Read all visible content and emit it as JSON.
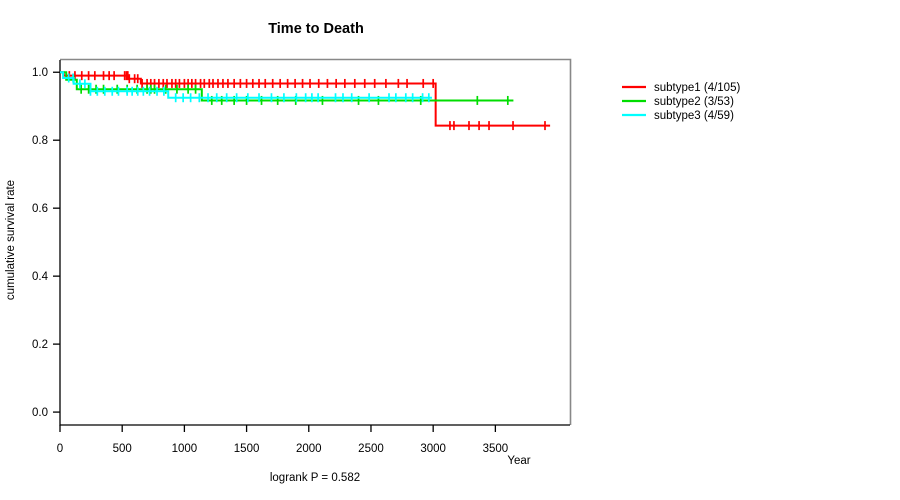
{
  "chart_data": {
    "type": "line",
    "subtype": "kaplan_meier_step_survival",
    "title": "Time to Death",
    "xlabel": "Year",
    "ylabel": "cumulative survival rate",
    "annotation": "logrank P = 0.582",
    "grid": false,
    "legend_position": "right-outside",
    "xlim": [
      0,
      4100
    ],
    "ylim": [
      -0.038,
      1.036
    ],
    "x_ticks": [
      {
        "v": 0,
        "label": "0"
      },
      {
        "v": 500,
        "label": "500"
      },
      {
        "v": 1000,
        "label": "1000"
      },
      {
        "v": 1500,
        "label": "1500"
      },
      {
        "v": 2000,
        "label": "2000"
      },
      {
        "v": 2500,
        "label": "2500"
      },
      {
        "v": 3000,
        "label": "3000"
      },
      {
        "v": 3500,
        "label": "3500"
      }
    ],
    "y_ticks": [
      {
        "v": 0.0,
        "label": "0.0"
      },
      {
        "v": 0.2,
        "label": "0.2"
      },
      {
        "v": 0.4,
        "label": "0.4"
      },
      {
        "v": 0.6,
        "label": "0.6"
      },
      {
        "v": 0.8,
        "label": "0.8"
      },
      {
        "v": 1.0,
        "label": "1.0"
      }
    ],
    "series": [
      {
        "id": "subtype1",
        "name": "subtype1 (4/105)",
        "color": "#FF0000",
        "events": 4,
        "n": 105,
        "start_y": 1.0,
        "steps": [
          [
            30,
            0.99
          ],
          [
            550,
            0.981
          ],
          [
            650,
            0.967
          ],
          [
            3020,
            0.843
          ]
        ],
        "end_x": 3940,
        "censor_x": [
          75,
          120,
          175,
          230,
          280,
          350,
          395,
          435,
          520,
          535,
          545,
          557,
          600,
          625,
          660,
          700,
          730,
          760,
          795,
          830,
          860,
          900,
          930,
          960,
          1000,
          1030,
          1060,
          1090,
          1130,
          1160,
          1200,
          1230,
          1270,
          1310,
          1350,
          1400,
          1450,
          1500,
          1550,
          1600,
          1650,
          1710,
          1770,
          1830,
          1890,
          1950,
          2010,
          2080,
          2150,
          2220,
          2290,
          2370,
          2450,
          2530,
          2620,
          2720,
          2790,
          2920,
          3000,
          3135,
          3167,
          3288,
          3369,
          3449,
          3642,
          3899
        ]
      },
      {
        "id": "subtype2",
        "name": "subtype2 (3/53)",
        "color": "#00DD00",
        "events": 3,
        "n": 53,
        "start_y": 1.0,
        "steps": [
          [
            50,
            0.978
          ],
          [
            135,
            0.95
          ],
          [
            1140,
            0.917
          ]
        ],
        "end_x": 3645,
        "censor_x": [
          110,
          170,
          230,
          290,
          350,
          460,
          540,
          620,
          700,
          730,
          760,
          850,
          940,
          1030,
          1090,
          1220,
          1300,
          1400,
          1500,
          1620,
          1750,
          1895,
          2110,
          2400,
          2560,
          2900,
          3355,
          3600
        ]
      },
      {
        "id": "subtype3",
        "name": "subtype3 (4/59)",
        "color": "#00FFFF",
        "events": 4,
        "n": 59,
        "start_y": 1.0,
        "steps": [
          [
            25,
            0.983
          ],
          [
            110,
            0.966
          ],
          [
            245,
            0.944
          ],
          [
            870,
            0.925
          ]
        ],
        "end_x": 2990,
        "censor_x": [
          70,
          105,
          160,
          200,
          245,
          300,
          360,
          420,
          470,
          540,
          580,
          625,
          670,
          720,
          780,
          835,
          930,
          990,
          1050,
          1120,
          1190,
          1260,
          1340,
          1420,
          1510,
          1600,
          1700,
          1800,
          1900,
          1975,
          2025,
          2075,
          2215,
          2275,
          2345,
          2485,
          2645,
          2700,
          2780,
          2835,
          2915,
          2965
        ]
      }
    ]
  },
  "layout_colors": {
    "box_top_right": "#888888",
    "axis": "#000000",
    "text": "#000000",
    "background": "#ffffff"
  }
}
